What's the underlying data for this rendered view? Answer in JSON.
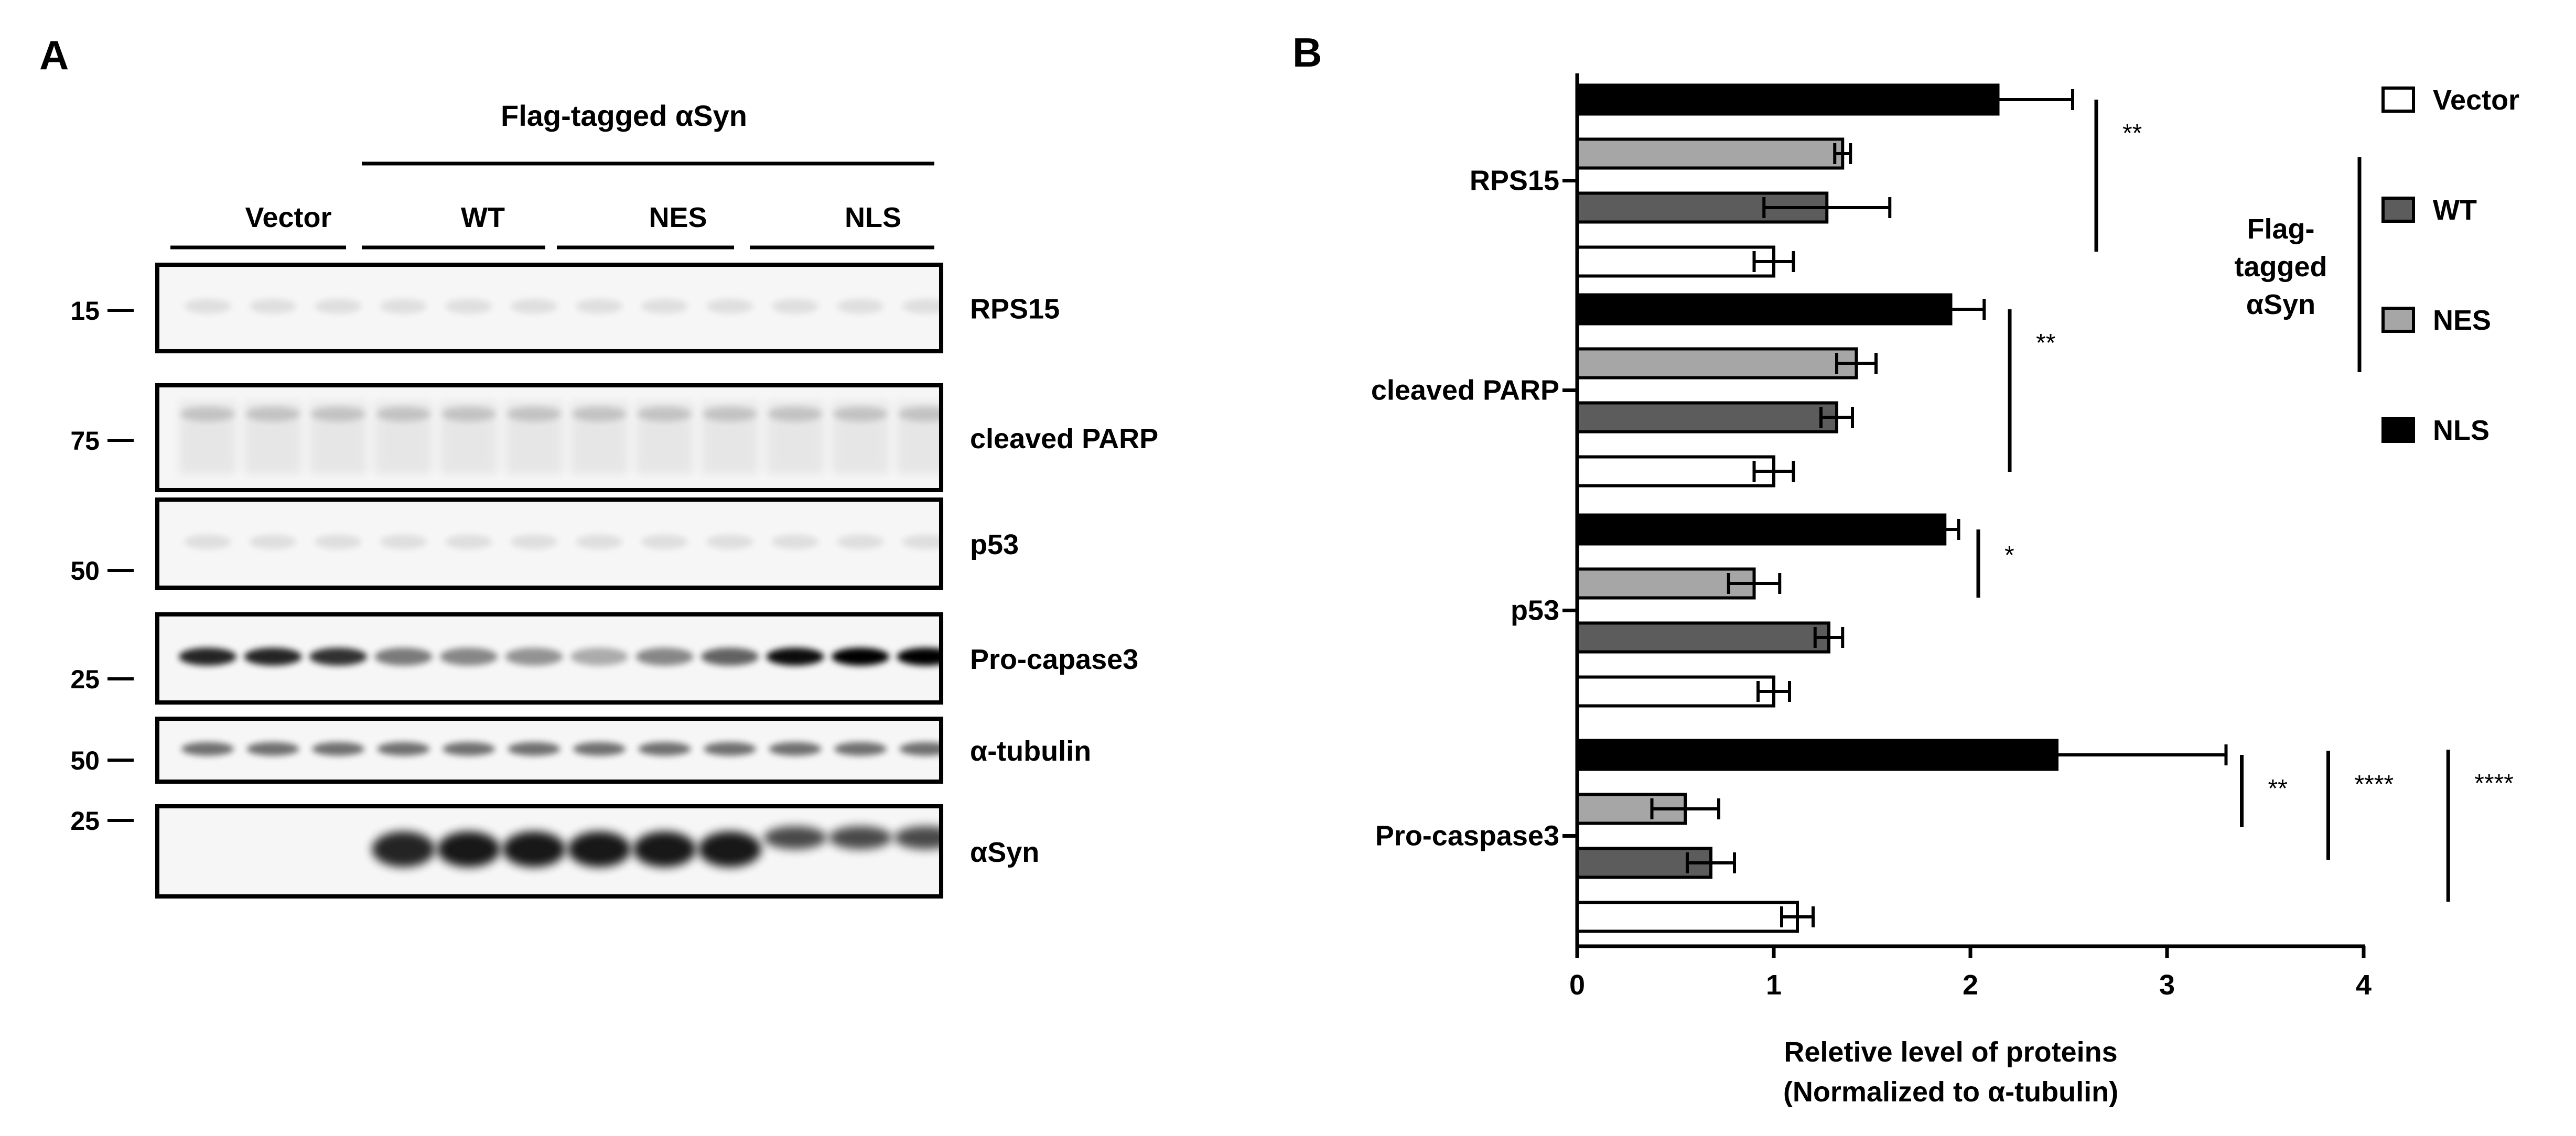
{
  "panel_a": {
    "letter": "A",
    "group_header": "Flag-tagged αSyn",
    "lane_groups": [
      "Vector",
      "WT",
      "NES",
      "NLS"
    ],
    "lanes_per_group": 3,
    "blots": [
      {
        "label": "RPS15",
        "marker": "15",
        "band": "faint"
      },
      {
        "label": "cleaved  PARP",
        "marker": "75",
        "band": "smear"
      },
      {
        "label": "p53",
        "marker": "50",
        "band": "faint"
      },
      {
        "label": "Pro-capase3",
        "marker": "25",
        "band": "dark"
      },
      {
        "label": "α-tubulin",
        "marker": "50",
        "band": "medium"
      },
      {
        "label": "αSyn",
        "marker": "25",
        "band": "syn"
      }
    ],
    "band_intensity": {
      "Pro-capase3": [
        0.85,
        0.85,
        0.8,
        0.5,
        0.45,
        0.4,
        0.3,
        0.45,
        0.6,
        0.95,
        1.0,
        1.0
      ],
      "αSyn": [
        0,
        0,
        0,
        0.85,
        0.9,
        0.9,
        0.9,
        0.9,
        0.9,
        0.7,
        0.7,
        0.7
      ]
    }
  },
  "panel_b": {
    "letter": "B",
    "legend": {
      "items": [
        {
          "label": "Vector",
          "color": "#ffffff"
        },
        {
          "label": "WT",
          "color": "#5c5c5c"
        },
        {
          "label": "NES",
          "color": "#a6a6a6"
        },
        {
          "label": "NLS",
          "color": "#000000"
        }
      ],
      "group_label": [
        "Flag-",
        "tagged",
        "αSyn"
      ]
    }
  },
  "chart_data": {
    "type": "bar",
    "orientation": "horizontal",
    "categories": [
      "RPS15",
      "cleaved PARP",
      "p53",
      "Pro-caspase3"
    ],
    "series": [
      {
        "name": "Vector",
        "color": "#ffffff",
        "values": [
          1.0,
          1.0,
          1.0,
          1.12
        ],
        "errors": [
          0.1,
          0.1,
          0.08,
          0.08
        ]
      },
      {
        "name": "WT",
        "color": "#5c5c5c",
        "values": [
          1.27,
          1.32,
          1.28,
          0.68
        ],
        "errors": [
          0.32,
          0.08,
          0.07,
          0.12
        ]
      },
      {
        "name": "NES",
        "color": "#a6a6a6",
        "values": [
          1.35,
          1.42,
          0.9,
          0.55
        ],
        "errors": [
          0.04,
          0.1,
          0.13,
          0.17
        ]
      },
      {
        "name": "NLS",
        "color": "#000000",
        "values": [
          2.14,
          1.9,
          1.87,
          2.44
        ],
        "errors": [
          0.38,
          0.17,
          0.07,
          0.86
        ]
      }
    ],
    "xlabel": [
      "Reletive level of proteins",
      "(Normalized to α-tubulin)"
    ],
    "xlim": [
      0,
      4
    ],
    "xticks": [
      "0",
      "1",
      "2",
      "3",
      "4"
    ],
    "legend_position": "right",
    "significance": [
      {
        "category": "RPS15",
        "text": "**",
        "x": 2.64
      },
      {
        "category": "cleaved PARP",
        "text": "**",
        "x": 2.2
      },
      {
        "category": "p53",
        "text": "*",
        "x": 2.04
      },
      {
        "category": "Pro-caspase3",
        "text": "**",
        "x": 3.38
      },
      {
        "category": "Pro-caspase3",
        "text": "****",
        "x": 3.82
      },
      {
        "category": "Pro-caspase3",
        "text": "****",
        "x": 4.43
      }
    ]
  }
}
